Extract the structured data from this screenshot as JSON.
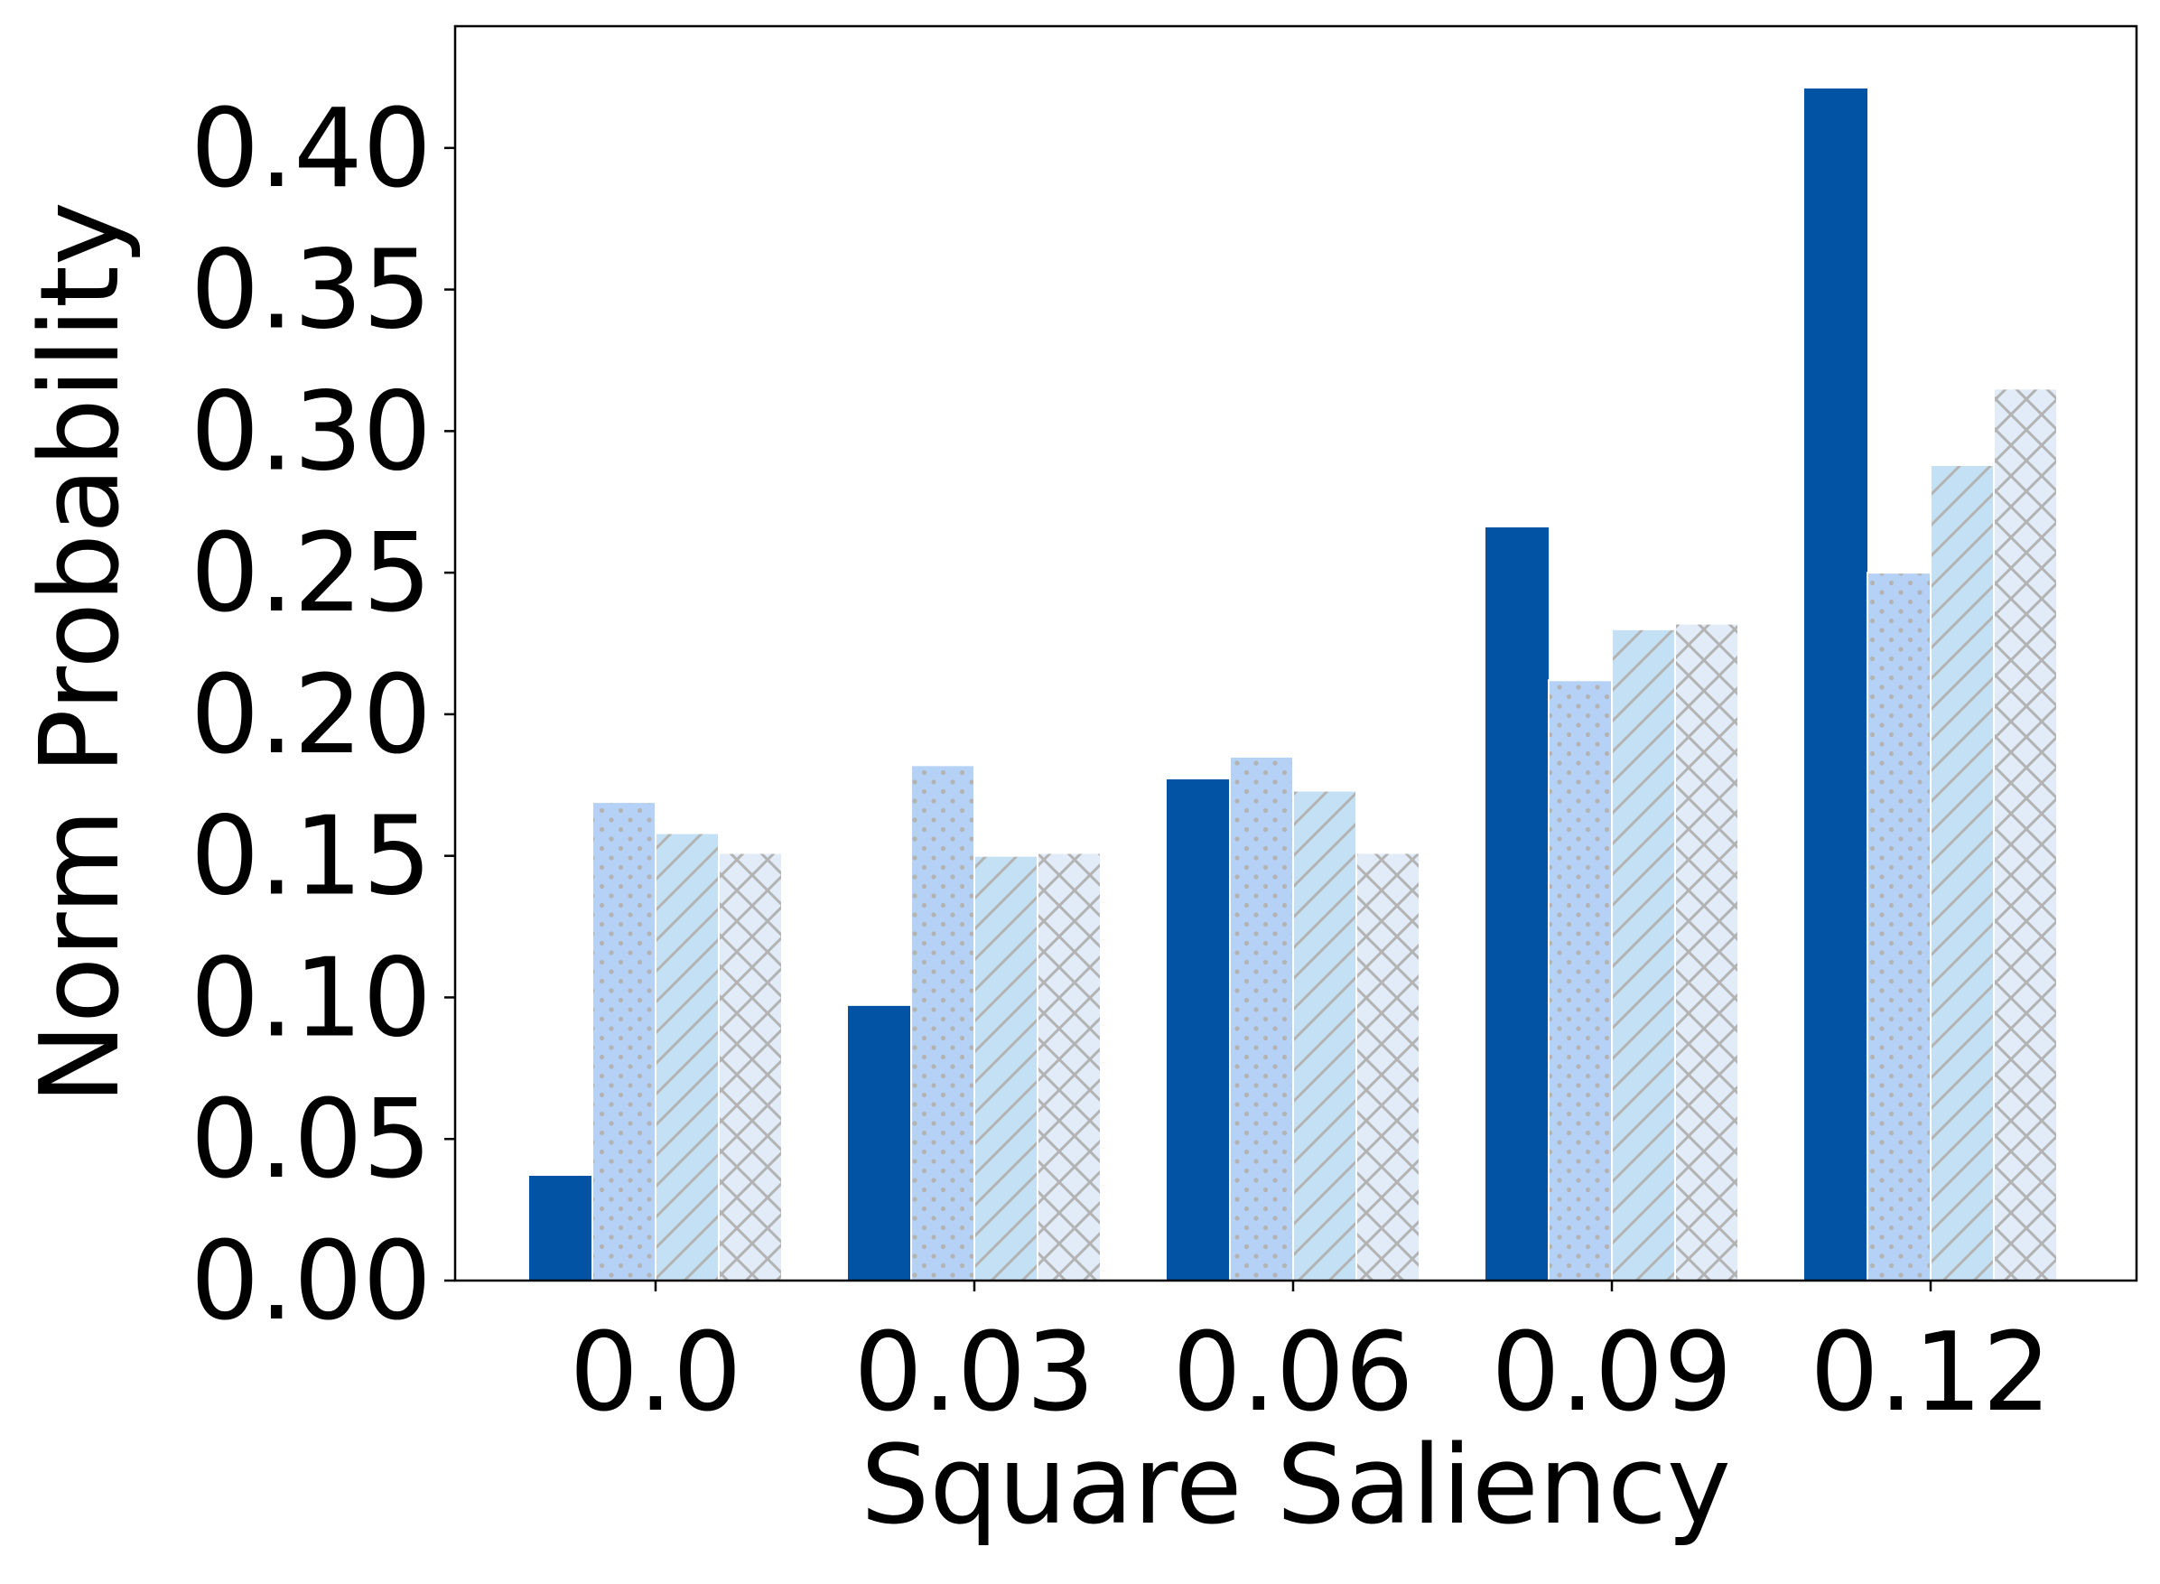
{
  "chart_data": {
    "type": "bar",
    "title": "",
    "xlabel": "Square Saliency",
    "ylabel": "Norm Probability",
    "categories": [
      "0.0",
      "0.03",
      "0.06",
      "0.09",
      "0.12"
    ],
    "ylim": [
      0,
      0.443
    ],
    "yticks": [
      0.0,
      0.05,
      0.1,
      0.15,
      0.2,
      0.25,
      0.3,
      0.35,
      0.4
    ],
    "ytick_labels": [
      "0.00",
      "0.05",
      "0.10",
      "0.15",
      "0.20",
      "0.25",
      "0.30",
      "0.35",
      "0.40"
    ],
    "grid": false,
    "legend": "none",
    "series": [
      {
        "values": [
          0.037,
          0.097,
          0.177,
          0.266,
          0.421
        ],
        "color": "#0353a4",
        "pattern": "solid"
      },
      {
        "values": [
          0.169,
          0.182,
          0.185,
          0.212,
          0.25
        ],
        "color": "#b5d1f5",
        "pattern": "dots"
      },
      {
        "values": [
          0.158,
          0.15,
          0.173,
          0.23,
          0.288
        ],
        "color": "#c3e0f4",
        "pattern": "diagonal"
      },
      {
        "values": [
          0.151,
          0.151,
          0.151,
          0.232,
          0.315
        ],
        "color": "#e1ecf8",
        "pattern": "crosshatch"
      }
    ],
    "hatch_color": "#b3b3b3"
  }
}
